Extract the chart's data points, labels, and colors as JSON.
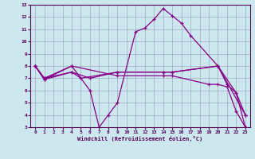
{
  "xlabel": "Windchill (Refroidissement éolien,°C)",
  "bg_color": "#cce8ee",
  "line_color": "#880088",
  "xlim": [
    -0.5,
    23.5
  ],
  "ylim": [
    3,
    13
  ],
  "xticks": [
    0,
    1,
    2,
    3,
    4,
    5,
    6,
    7,
    8,
    9,
    10,
    11,
    12,
    13,
    14,
    15,
    16,
    17,
    18,
    19,
    20,
    21,
    22,
    23
  ],
  "yticks": [
    3,
    4,
    5,
    6,
    7,
    8,
    9,
    10,
    11,
    12,
    13
  ],
  "series": [
    {
      "x": [
        0,
        1,
        4,
        6,
        7,
        8,
        9,
        11,
        12,
        13,
        14,
        15,
        16,
        17,
        20,
        23
      ],
      "y": [
        8,
        7,
        8,
        6,
        3,
        4,
        5,
        10.8,
        11.1,
        11.8,
        12.7,
        12.1,
        11.5,
        10.5,
        8,
        4
      ]
    },
    {
      "x": [
        0,
        1,
        4,
        6,
        9,
        14,
        15,
        20,
        21,
        22,
        23
      ],
      "y": [
        8,
        7,
        7.5,
        7,
        7.5,
        7.5,
        7.5,
        8,
        6.5,
        5.8,
        4
      ]
    },
    {
      "x": [
        0,
        1,
        4,
        5,
        9,
        14,
        15,
        20,
        22,
        23
      ],
      "y": [
        8,
        6.9,
        7.5,
        7,
        7.5,
        7.5,
        7.5,
        8,
        5.8,
        3
      ]
    },
    {
      "x": [
        0,
        1,
        4,
        9,
        14,
        15,
        19,
        20,
        21,
        22,
        23
      ],
      "y": [
        8,
        6.9,
        8,
        7.2,
        7.2,
        7.2,
        6.5,
        6.5,
        6.3,
        4.3,
        3
      ]
    }
  ]
}
